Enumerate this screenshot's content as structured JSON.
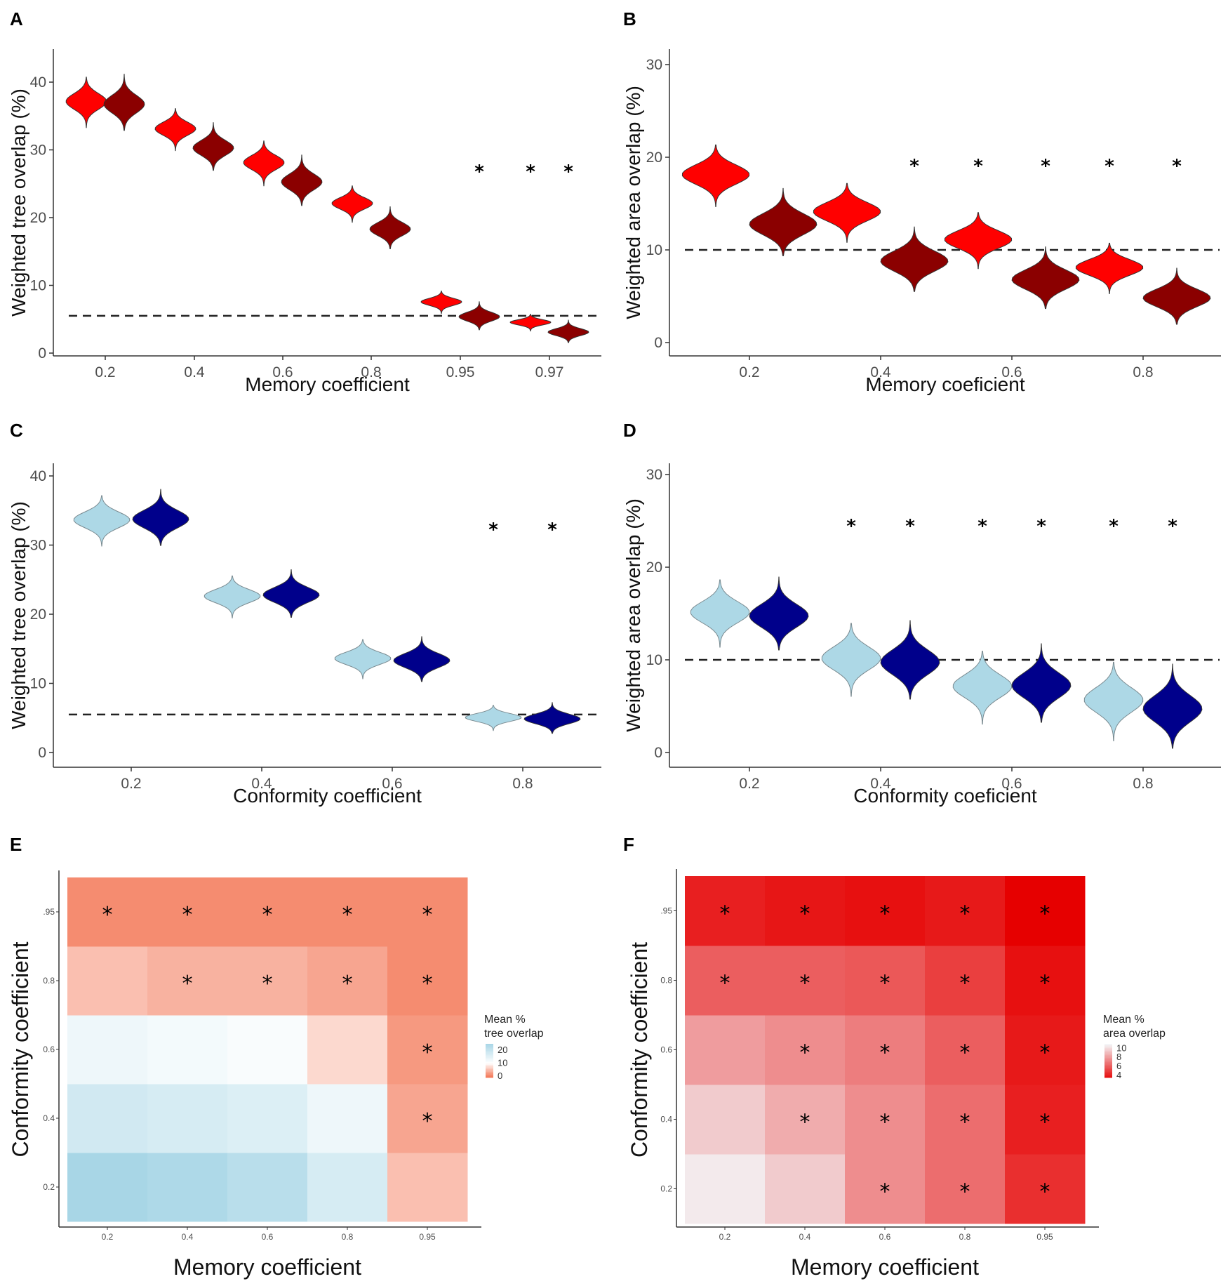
{
  "chart_data": [
    {
      "id": "A",
      "type": "violin",
      "panel_label": "A",
      "xlabel": "Memory coefficient",
      "ylabel": "Weighted tree overlap (%)",
      "ylim": [
        0,
        45
      ],
      "yticks": [
        "0",
        "10",
        "20",
        "30",
        "40"
      ],
      "categories": [
        "0.2",
        "0.4",
        "0.6",
        "0.8",
        "0.95",
        "0.97"
      ],
      "series": [
        {
          "name": "light",
          "color": "#ff0000",
          "values": [
            37,
            33,
            28,
            22,
            7.5,
            4.5
          ]
        },
        {
          "name": "dark",
          "color": "#8b0000",
          "values": [
            37,
            30.5,
            25.5,
            18.5,
            5.5,
            3.2
          ]
        }
      ],
      "reference_line": 5.5,
      "significance": [
        {
          "category": "0.95",
          "series": "dark"
        },
        {
          "category": "0.97",
          "series": "light"
        },
        {
          "category": "0.97",
          "series": "dark"
        }
      ],
      "star": "*"
    },
    {
      "id": "B",
      "type": "violin",
      "panel_label": "B",
      "xlabel": "Memory coeficient",
      "ylabel": "Weighted area overlap (%)",
      "ylim": [
        0,
        31
      ],
      "yticks": [
        "0",
        "10",
        "20",
        "30"
      ],
      "categories": [
        "0.2",
        "0.4",
        "0.6",
        "0.8"
      ],
      "series": [
        {
          "name": "light",
          "color": "#ff0000",
          "values": [
            18,
            14,
            11,
            8
          ]
        },
        {
          "name": "dark",
          "color": "#8b0000",
          "values": [
            13,
            9,
            7,
            5
          ]
        }
      ],
      "reference_line": 10,
      "significance": [
        {
          "category": "0.4",
          "series": "dark"
        },
        {
          "category": "0.6",
          "series": "light"
        },
        {
          "category": "0.6",
          "series": "dark"
        },
        {
          "category": "0.8",
          "series": "light"
        },
        {
          "category": "0.8",
          "series": "dark"
        }
      ],
      "star": "*"
    },
    {
      "id": "C",
      "type": "violin",
      "panel_label": "C",
      "xlabel": "Conformity coefficient",
      "ylabel": "Weighted tree overlap (%)",
      "ylim": [
        0,
        41
      ],
      "yticks": [
        "0",
        "10",
        "20",
        "30",
        "40"
      ],
      "categories": [
        "0.2",
        "0.4",
        "0.6",
        "0.8"
      ],
      "series": [
        {
          "name": "light",
          "color": "#add8e6",
          "values": [
            33.5,
            22.5,
            13.5,
            5
          ]
        },
        {
          "name": "dark",
          "color": "#00008b",
          "values": [
            34,
            23,
            13.5,
            5
          ]
        }
      ],
      "reference_line": 5.5,
      "significance": [
        {
          "category": "0.8",
          "series": "light"
        },
        {
          "category": "0.8",
          "series": "dark"
        }
      ],
      "star": "*"
    },
    {
      "id": "D",
      "type": "violin",
      "panel_label": "D",
      "xlabel": "Conformity coeficient",
      "ylabel": "Weighted area overlap (%)",
      "ylim": [
        0,
        31
      ],
      "yticks": [
        "0",
        "10",
        "20",
        "30"
      ],
      "categories": [
        "0.2",
        "0.4",
        "0.6",
        "0.8"
      ],
      "series": [
        {
          "name": "light",
          "color": "#add8e6",
          "values": [
            15,
            10,
            7,
            5.5
          ]
        },
        {
          "name": "dark",
          "color": "#00008b",
          "values": [
            15,
            10,
            7.5,
            5
          ]
        }
      ],
      "reference_line": 10,
      "significance": [
        {
          "category": "0.4",
          "series": "light"
        },
        {
          "category": "0.4",
          "series": "dark"
        },
        {
          "category": "0.6",
          "series": "light"
        },
        {
          "category": "0.6",
          "series": "dark"
        },
        {
          "category": "0.8",
          "series": "light"
        },
        {
          "category": "0.8",
          "series": "dark"
        }
      ],
      "star": "*"
    },
    {
      "id": "E",
      "type": "heatmap",
      "panel_label": "E",
      "xlabel": "Memory coefficient",
      "ylabel": "Conformity coefficient",
      "x": [
        "0.2",
        "0.4",
        "0.6",
        "0.8",
        "0.95"
      ],
      "y": [
        "0.2",
        "0.4",
        "0.6",
        "0.8",
        ".95"
      ],
      "values": [
        [
          25,
          24,
          22,
          17,
          5
        ],
        [
          18,
          17,
          16,
          13,
          3
        ],
        [
          13,
          12,
          11,
          7,
          2
        ],
        [
          5,
          4,
          4,
          3,
          1
        ],
        [
          1,
          1,
          1,
          1,
          1
        ]
      ],
      "significance": [
        [
          0,
          0,
          0,
          0,
          0
        ],
        [
          0,
          0,
          0,
          0,
          1
        ],
        [
          0,
          0,
          0,
          0,
          1
        ],
        [
          0,
          1,
          1,
          1,
          1
        ],
        [
          1,
          1,
          1,
          1,
          1
        ]
      ],
      "legend_title": [
        "Mean %",
        "tree overlap"
      ],
      "legend_ticks": [
        "20",
        "10",
        "0"
      ],
      "legend_values": [
        20,
        10,
        0
      ],
      "scale": {
        "min": 0,
        "mid": 10,
        "max": 25,
        "low_color": "#f47f60",
        "mid_color": "#ffffff",
        "high_color": "#a8d6e6"
      },
      "star": "*"
    },
    {
      "id": "F",
      "type": "heatmap",
      "panel_label": "F",
      "xlabel": "Memory coefficient",
      "ylabel": "Conformity coefficient",
      "x": [
        "0.2",
        "0.4",
        "0.6",
        "0.8",
        "0.95"
      ],
      "y": [
        "0.2",
        "0.4",
        "0.6",
        "0.8",
        ".95"
      ],
      "values": [
        [
          10.5,
          9.5,
          7.5,
          6.5,
          4.5
        ],
        [
          9.5,
          8.5,
          7.5,
          6.5,
          4.0
        ],
        [
          8.0,
          7.5,
          7.0,
          6.0,
          3.8
        ],
        [
          6.0,
          6.0,
          5.8,
          5.0,
          3.5
        ],
        [
          4.0,
          3.7,
          3.5,
          3.8,
          3.0
        ]
      ],
      "significance": [
        [
          0,
          0,
          1,
          1,
          1
        ],
        [
          0,
          1,
          1,
          1,
          1
        ],
        [
          0,
          1,
          1,
          1,
          1
        ],
        [
          1,
          1,
          1,
          1,
          1
        ],
        [
          1,
          1,
          1,
          1,
          1
        ]
      ],
      "legend_title": [
        "Mean %",
        "area overlap"
      ],
      "legend_ticks": [
        "10",
        "8",
        "6",
        "4"
      ],
      "legend_values": [
        10,
        8,
        6,
        4
      ],
      "scale": {
        "min": 3,
        "max": 11,
        "low_color": "#e60000",
        "high_color": "#f4fafc"
      },
      "star": "*"
    }
  ]
}
